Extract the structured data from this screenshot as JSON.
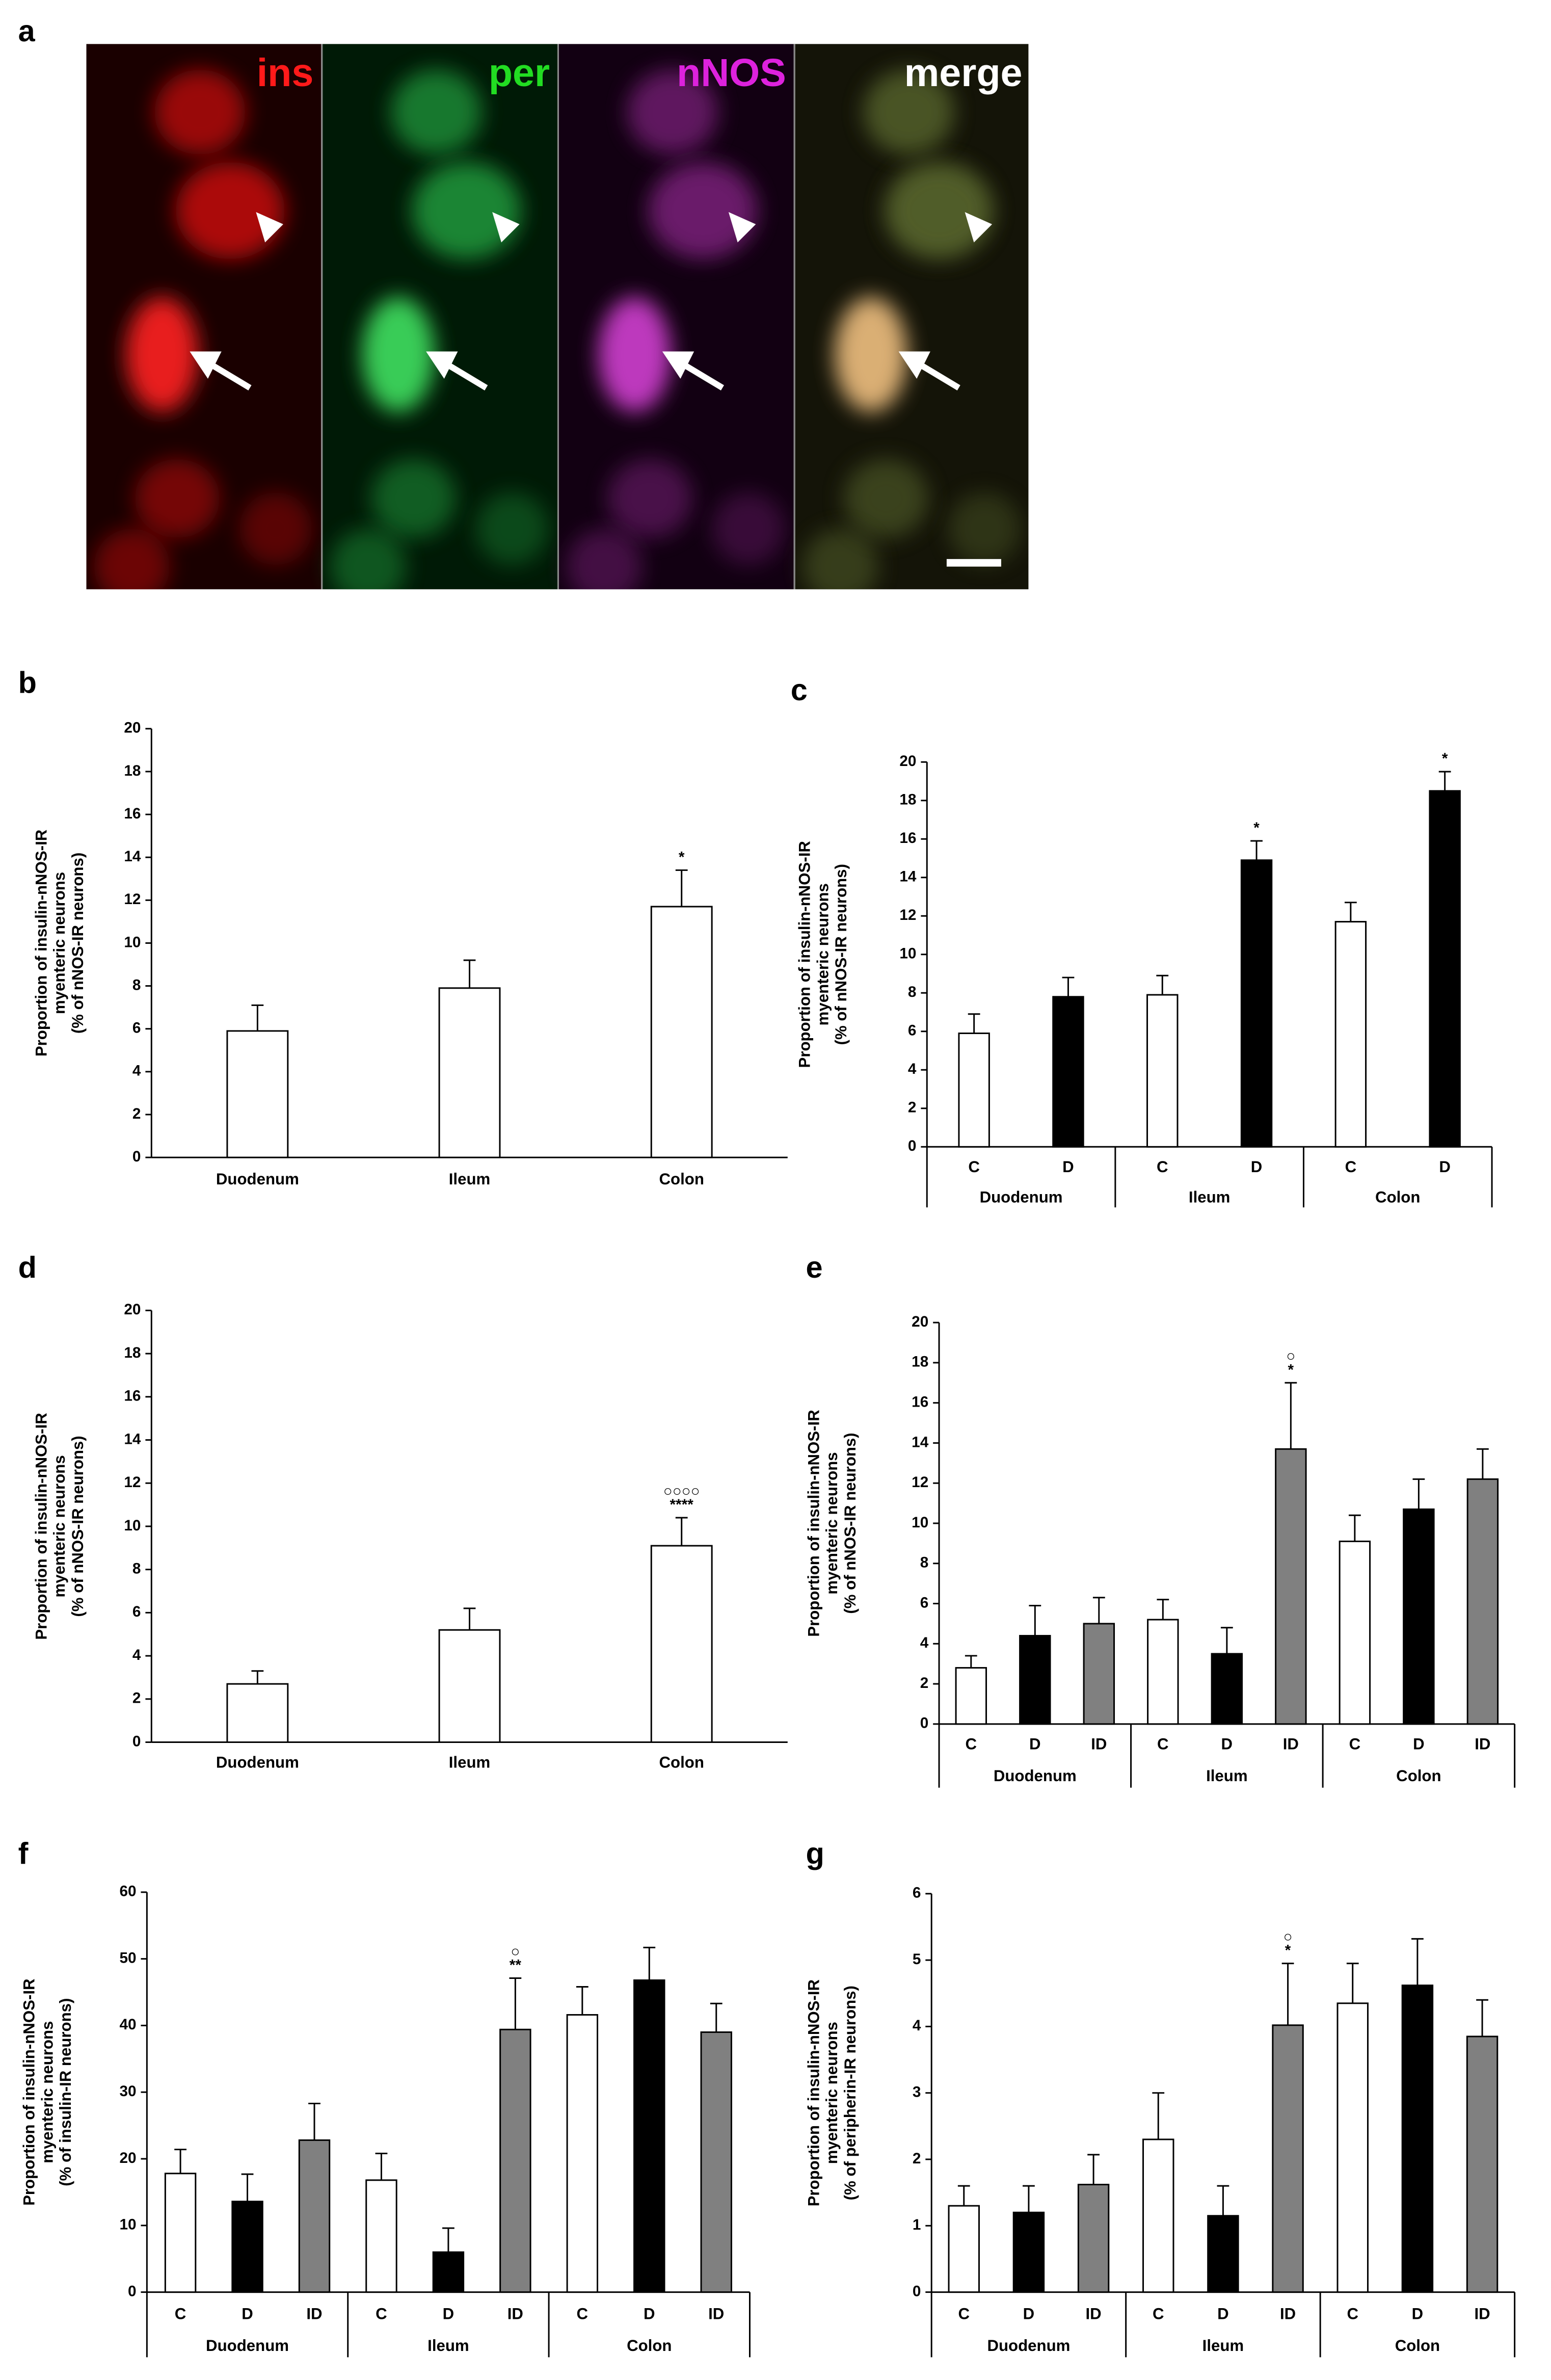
{
  "image_panel": {
    "label": "a",
    "channels": [
      "ins",
      "per",
      "nNOS",
      "merge"
    ]
  },
  "chart_data": [
    {
      "type": "bar",
      "panel": "b",
      "ylabel": [
        "Proportion of insulin-nNOS-IR",
        "myenteric neurons",
        "(% of nNOS-IR neurons)"
      ],
      "categories": [
        "Duodenum",
        "Ileum",
        "Colon"
      ],
      "values": [
        5.9,
        7.9,
        11.7
      ],
      "errors": [
        1.2,
        1.3,
        1.7
      ],
      "annotations": [
        null,
        null,
        [
          "*"
        ]
      ],
      "color": "#ffffff",
      "ylim": [
        0,
        20
      ],
      "yticks": [
        0,
        2,
        4,
        6,
        8,
        10,
        12,
        14,
        16,
        18,
        20
      ]
    },
    {
      "type": "bar",
      "panel": "c",
      "ylabel": [
        "Proportion of insulin-nNOS-IR",
        "myenteric neurons",
        "(% of nNOS-IR neurons)"
      ],
      "groups": [
        "Duodenum",
        "Ileum",
        "Colon"
      ],
      "series": [
        {
          "name": "C",
          "color": "#ffffff",
          "values": [
            5.9,
            7.9,
            11.7
          ],
          "errors": [
            1.0,
            1.0,
            1.0
          ],
          "annotations": [
            null,
            null,
            null
          ]
        },
        {
          "name": "D",
          "color": "#000000",
          "values": [
            7.8,
            14.9,
            18.5
          ],
          "errors": [
            1.0,
            1.0,
            1.0
          ],
          "annotations": [
            null,
            [
              "*"
            ],
            [
              "*"
            ]
          ]
        }
      ],
      "ylim": [
        0,
        20
      ],
      "yticks": [
        0,
        2,
        4,
        6,
        8,
        10,
        12,
        14,
        16,
        18,
        20
      ]
    },
    {
      "type": "bar",
      "panel": "d",
      "ylabel": [
        "Proportion of insulin-nNOS-IR",
        "myenteric neurons",
        "(% of nNOS-IR neurons)"
      ],
      "categories": [
        "Duodenum",
        "Ileum",
        "Colon"
      ],
      "values": [
        2.7,
        5.2,
        9.1
      ],
      "errors": [
        0.6,
        1.0,
        1.3
      ],
      "annotations": [
        null,
        null,
        [
          "○○○○",
          "****"
        ]
      ],
      "color": "#ffffff",
      "ylim": [
        0,
        20
      ],
      "yticks": [
        0,
        2,
        4,
        6,
        8,
        10,
        12,
        14,
        16,
        18,
        20
      ]
    },
    {
      "type": "bar",
      "panel": "e",
      "ylabel": [
        "Proportion of insulin-nNOS-IR",
        "myenteric neurons",
        "(% of nNOS-IR neurons)"
      ],
      "groups": [
        "Duodenum",
        "Ileum",
        "Colon"
      ],
      "series": [
        {
          "name": "C",
          "color": "#ffffff",
          "values": [
            2.8,
            5.2,
            9.1
          ],
          "errors": [
            0.6,
            1.0,
            1.3
          ],
          "annotations": [
            null,
            null,
            null
          ]
        },
        {
          "name": "D",
          "color": "#000000",
          "values": [
            4.4,
            3.5,
            10.7
          ],
          "errors": [
            1.5,
            1.3,
            1.5
          ],
          "annotations": [
            null,
            null,
            null
          ]
        },
        {
          "name": "ID",
          "color": "#808080",
          "values": [
            5.0,
            13.7,
            12.2
          ],
          "errors": [
            1.3,
            3.3,
            1.5
          ],
          "annotations": [
            null,
            [
              "○",
              "*"
            ],
            null
          ]
        }
      ],
      "ylim": [
        0,
        20
      ],
      "yticks": [
        0,
        2,
        4,
        6,
        8,
        10,
        12,
        14,
        16,
        18,
        20
      ]
    },
    {
      "type": "bar",
      "panel": "f",
      "ylabel": [
        "Proportion of insulin-nNOS-IR",
        "myenteric neurons",
        "(% of insulin-IR neurons)"
      ],
      "groups": [
        "Duodenum",
        "Ileum",
        "Colon"
      ],
      "series": [
        {
          "name": "C",
          "color": "#ffffff",
          "values": [
            17.8,
            16.8,
            41.6
          ],
          "errors": [
            3.6,
            4.0,
            4.2
          ],
          "annotations": [
            null,
            null,
            null
          ]
        },
        {
          "name": "D",
          "color": "#000000",
          "values": [
            13.6,
            6.0,
            46.8
          ],
          "errors": [
            4.1,
            3.6,
            4.9
          ],
          "annotations": [
            null,
            null,
            null
          ]
        },
        {
          "name": "ID",
          "color": "#808080",
          "values": [
            22.8,
            39.4,
            39.0
          ],
          "errors": [
            5.5,
            7.7,
            4.3
          ],
          "annotations": [
            null,
            [
              "○",
              "**"
            ],
            null
          ]
        }
      ],
      "ylim": [
        0,
        60
      ],
      "yticks": [
        0,
        10,
        20,
        30,
        40,
        50,
        60
      ]
    },
    {
      "type": "bar",
      "panel": "g",
      "ylabel": [
        "Proportion of insulin-nNOS-IR",
        "myenteric neurons",
        "(% of peripherin-IR neurons)"
      ],
      "groups": [
        "Duodenum",
        "Ileum",
        "Colon"
      ],
      "series": [
        {
          "name": "C",
          "color": "#ffffff",
          "values": [
            1.3,
            2.3,
            4.35
          ],
          "errors": [
            0.3,
            0.7,
            0.6
          ],
          "annotations": [
            null,
            null,
            null
          ]
        },
        {
          "name": "D",
          "color": "#000000",
          "values": [
            1.2,
            1.15,
            4.62
          ],
          "errors": [
            0.4,
            0.45,
            0.7
          ],
          "annotations": [
            null,
            null,
            null
          ]
        },
        {
          "name": "ID",
          "color": "#808080",
          "values": [
            1.62,
            4.02,
            3.85
          ],
          "errors": [
            0.45,
            0.93,
            0.55
          ],
          "annotations": [
            null,
            [
              "○",
              "*"
            ],
            null
          ]
        }
      ],
      "ylim": [
        0,
        6
      ],
      "yticks": [
        0,
        1,
        2,
        3,
        4,
        5,
        6
      ]
    }
  ]
}
